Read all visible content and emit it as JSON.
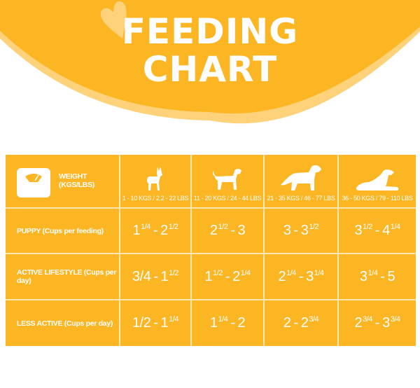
{
  "header": {
    "title_line1": "FEEDING",
    "title_line2": "CHART",
    "colors": {
      "banner": "#fcb624",
      "banner_edge": "#fdd27a",
      "heart": "#fdd27a",
      "text": "#ffffff"
    }
  },
  "table": {
    "colors": {
      "background": "#fcb624",
      "grid": "#fde7b0",
      "text": "#ffffff"
    },
    "corner_label": "WEIGHT (KGS/LBS)",
    "corner_icon": "scale-icon",
    "columns": [
      {
        "icon": "small-dog-icon",
        "weight": "1 - 10 KGS / 2.2 - 22 LBS"
      },
      {
        "icon": "medium-dog-icon",
        "weight": "11 - 20 KGS / 24 - 44 LBS"
      },
      {
        "icon": "large-dog-icon",
        "weight": "21 - 35 KGS / 46 - 77 LBS"
      },
      {
        "icon": "lying-dog-icon",
        "weight": "36 - 50 KGS / 79 - 110 LBS"
      }
    ],
    "rows": [
      {
        "label": "PUPPY (Cups per feeding)",
        "cells": [
          {
            "a": "1",
            "af": "1/4",
            "b": "2",
            "bf": "1/2"
          },
          {
            "a": "2",
            "af": "1/2",
            "b": "3",
            "bf": ""
          },
          {
            "a": "3",
            "af": "",
            "b": "3",
            "bf": "1/2"
          },
          {
            "a": "3",
            "af": "1/2",
            "b": "4",
            "bf": "1/4"
          }
        ]
      },
      {
        "label": "ACTIVE LIFESTYLE (Cups per day)",
        "cells": [
          {
            "a": "3/4",
            "af": "",
            "b": "1",
            "bf": "1/2"
          },
          {
            "a": "1",
            "af": "1/2",
            "b": "2",
            "bf": "1/4"
          },
          {
            "a": "2",
            "af": "1/4",
            "b": "3",
            "bf": "1/4"
          },
          {
            "a": "3",
            "af": "1/4",
            "b": "5",
            "bf": ""
          }
        ]
      },
      {
        "label": "LESS ACTIVE (Cups per day)",
        "cells": [
          {
            "a": "1/2",
            "af": "",
            "b": "1",
            "bf": "1/4"
          },
          {
            "a": "1",
            "af": "1/4",
            "b": "2",
            "bf": ""
          },
          {
            "a": "2",
            "af": "",
            "b": "2",
            "bf": "3/4"
          },
          {
            "a": "2",
            "af": "3/4",
            "b": "3",
            "bf": "3/4"
          }
        ]
      }
    ]
  },
  "chart_data": {
    "type": "table",
    "title": "FEEDING CHART",
    "column_header": "WEIGHT (KGS/LBS)",
    "columns": [
      "1 - 10 KGS / 2.2 - 22 LBS",
      "11 - 20 KGS / 24 - 44 LBS",
      "21 - 35 KGS / 46 - 77 LBS",
      "36 - 50 KGS / 79 - 110 LBS"
    ],
    "rows": [
      "PUPPY (Cups per feeding)",
      "ACTIVE LIFESTYLE (Cups per day)",
      "LESS ACTIVE (Cups per day)"
    ],
    "values": [
      [
        "1 1/4 - 2 1/2",
        "2 1/2 - 3",
        "3 - 3 1/2",
        "3 1/2 - 4 1/4"
      ],
      [
        "3/4 - 1 1/2",
        "1 1/2 - 2 1/4",
        "2 1/4 - 3 1/4",
        "3 1/4 - 5"
      ],
      [
        "1/2 - 1 1/4",
        "1 1/4 - 2",
        "2 - 2 3/4",
        "2 3/4 - 3 3/4"
      ]
    ],
    "numeric_ranges_cups": [
      [
        [
          1.25,
          2.5
        ],
        [
          2.5,
          3
        ],
        [
          3,
          3.5
        ],
        [
          3.5,
          4.25
        ]
      ],
      [
        [
          0.75,
          1.5
        ],
        [
          1.5,
          2.25
        ],
        [
          2.25,
          3.25
        ],
        [
          3.25,
          5
        ]
      ],
      [
        [
          0.5,
          1.25
        ],
        [
          1.25,
          2
        ],
        [
          2,
          2.75
        ],
        [
          2.75,
          3.75
        ]
      ]
    ]
  }
}
